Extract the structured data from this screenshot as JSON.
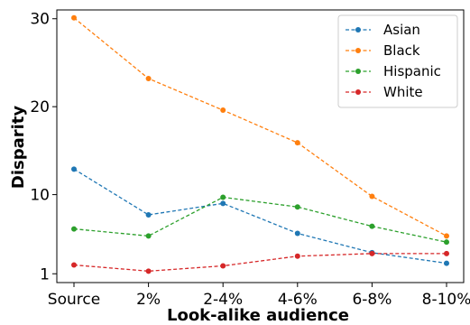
{
  "chart_data": {
    "type": "line",
    "xlabel": "Look-alike audience",
    "ylabel": "Disparity",
    "categories": [
      "Source",
      "2%",
      "2-4%",
      "4-6%",
      "6-8%",
      "8-10%"
    ],
    "y_ticks": [
      1,
      10,
      20,
      30
    ],
    "ylim": [
      0,
      31
    ],
    "grid": false,
    "legend_position": "top-right",
    "series": [
      {
        "name": "Asian",
        "color": "#1f77b4",
        "values": [
          12.9,
          7.7,
          9.0,
          5.6,
          3.4,
          2.2
        ]
      },
      {
        "name": "Black",
        "color": "#ff7f0e",
        "values": [
          30.1,
          23.2,
          19.6,
          15.9,
          9.8,
          5.3
        ]
      },
      {
        "name": "Hispanic",
        "color": "#2ca02c",
        "values": [
          6.1,
          5.3,
          9.7,
          8.6,
          6.4,
          4.6
        ]
      },
      {
        "name": "White",
        "color": "#d62728",
        "values": [
          2.0,
          1.3,
          1.9,
          3.0,
          3.3,
          3.3
        ]
      }
    ]
  }
}
